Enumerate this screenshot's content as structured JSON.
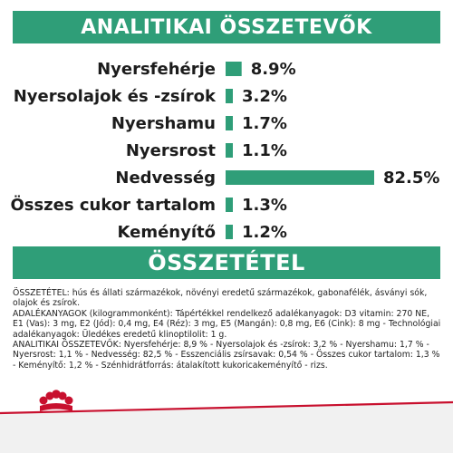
{
  "section1": {
    "title": "ANALITIKAI ÖSSZETEVŐK"
  },
  "section2": {
    "title": "ÖSSZETÉTEL"
  },
  "chart_data": {
    "type": "bar",
    "orientation": "horizontal",
    "categories": [
      "Nyersfehérje",
      "Nyersolajok és -zsírok",
      "Nyershamu",
      "Nyersrost",
      "Nedvesség",
      "Összes cukor tartalom",
      "Keményítő"
    ],
    "values": [
      8.9,
      3.2,
      1.7,
      1.1,
      82.5,
      1.3,
      1.2
    ],
    "value_labels": [
      "8.9%",
      "3.2%",
      "1.7%",
      "1.1%",
      "82.5%",
      "1.3%",
      "1.2%"
    ],
    "title": "ANALITIKAI ÖSSZETEVŐK",
    "xlim": [
      0,
      82.5
    ],
    "grid": false,
    "bar_color": "#2f9e78"
  },
  "composition": {
    "paragraphs": [
      "ÖSSZETÉTEL: hús és állati származékok, növényi eredetű származékok, gabonafélék, ásványi sók, olajok és zsírok.",
      "ADALÉKANYAGOK (kilogrammonként): Tápértékkel rendelkező adalékanyagok: D3 vitamin: 270 NE, E1 (Vas): 3 mg, E2 (Jód): 0,4 mg, E4 (Réz): 3 mg, E5 (Mangán): 0,8 mg, E6 (Cink): 8 mg - Technológiai adalékanyagok: Üledékes eredetű klinoptilolit: 1 g.",
      "ANALITIKAI ÖSSZETEVŐK: Nyersfehérje: 8,9 % - Nyersolajok és -zsírok: 3,2 % - Nyershamu: 1,7 % - Nyersrost: 1,1 % - Nedvesség: 82,5 % - Esszenciális zsírsavak: 0,54 % - Összes cukor tartalom: 1,3 % - Keményítő: 1,2 % - Szénhidrátforrás: átalakított kukoricakeményítő - rizs."
    ]
  },
  "colors": {
    "accent": "#2f9e78",
    "brand_red": "#c8102e"
  },
  "logo": {
    "icon": "royal-canin-crown-icon"
  }
}
